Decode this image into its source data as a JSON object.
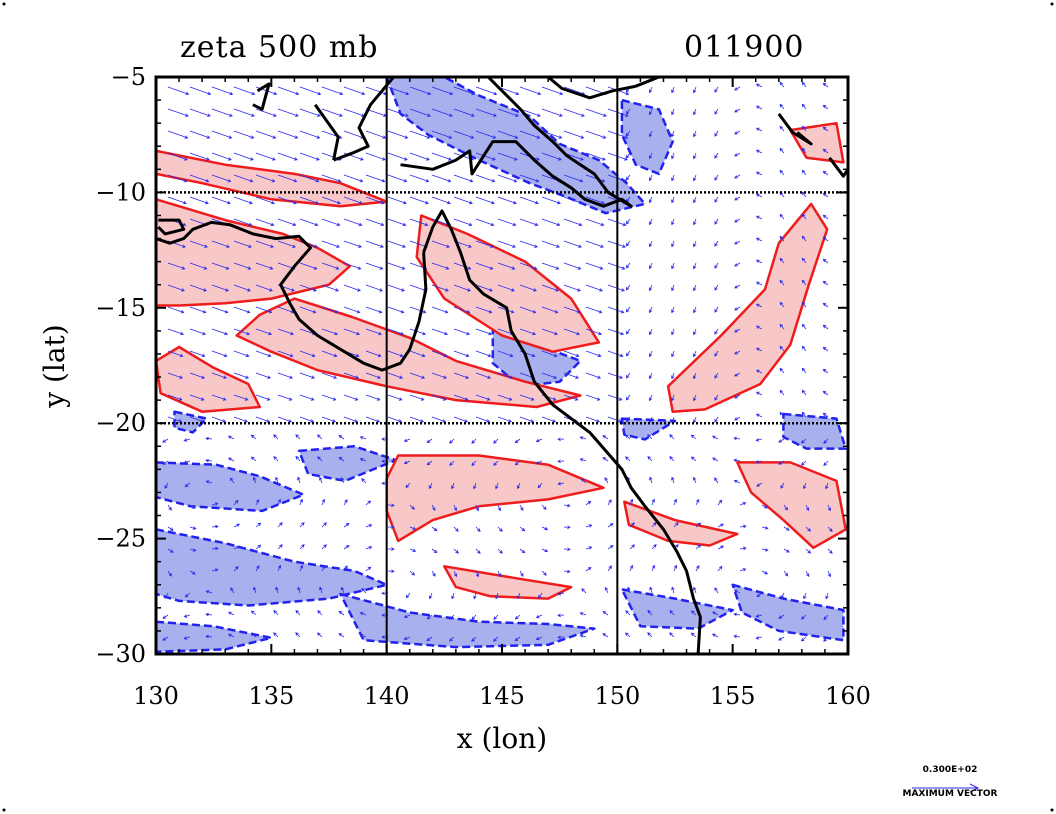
{
  "chart_data": {
    "type": "contour",
    "title": "zeta 500 mb",
    "date_label": "011900",
    "xlabel": "x (lon)",
    "ylabel": "y (lat)",
    "xlim": [
      130,
      160
    ],
    "ylim": [
      -30,
      -5
    ],
    "x_ticks": [
      130,
      135,
      140,
      145,
      150,
      155,
      160
    ],
    "y_ticks": [
      -5,
      -10,
      -15,
      -20,
      -25,
      -30
    ],
    "grid_lines_x": [
      140,
      150
    ],
    "grid_lines_y": [
      -10,
      -20
    ],
    "positive_color": "#ee1c1c",
    "positive_fill": "#f8c8c8",
    "negative_color": "#2222ee",
    "negative_fill": "#a8b0ee",
    "vector_color": "#2a2aee",
    "positive_regions": [
      [
        [
          130,
          -8.2
        ],
        [
          133,
          -8.8
        ],
        [
          136,
          -9.2
        ],
        [
          138,
          -9.6
        ],
        [
          140,
          -10.4
        ],
        [
          138,
          -10.6
        ],
        [
          135,
          -10.3
        ],
        [
          132,
          -9.6
        ],
        [
          130,
          -9.2
        ]
      ],
      [
        [
          130,
          -10.3
        ],
        [
          133,
          -11.2
        ],
        [
          135.5,
          -11.8
        ],
        [
          137,
          -12.4
        ],
        [
          138.4,
          -13.2
        ],
        [
          137.5,
          -14.0
        ],
        [
          135,
          -14.6
        ],
        [
          133,
          -14.8
        ],
        [
          131,
          -14.9
        ],
        [
          130,
          -14.9
        ]
      ],
      [
        [
          136,
          -14.6
        ],
        [
          138.5,
          -15.4
        ],
        [
          141,
          -16.3
        ],
        [
          143,
          -17.3
        ],
        [
          146,
          -18.2
        ],
        [
          148.4,
          -18.8
        ],
        [
          146.5,
          -19.3
        ],
        [
          143,
          -19.0
        ],
        [
          140,
          -18.4
        ],
        [
          137,
          -17.7
        ],
        [
          135,
          -16.9
        ],
        [
          133.5,
          -16.2
        ],
        [
          134.5,
          -15.3
        ]
      ],
      [
        [
          131,
          -16.7
        ],
        [
          132.5,
          -17.6
        ],
        [
          134,
          -18.3
        ],
        [
          134.5,
          -19.3
        ],
        [
          132,
          -19.5
        ],
        [
          130.2,
          -18.7
        ],
        [
          130,
          -17.3
        ]
      ],
      [
        [
          141.5,
          -11.0
        ],
        [
          143.5,
          -11.8
        ],
        [
          146,
          -13.0
        ],
        [
          148,
          -14.6
        ],
        [
          149.2,
          -16.5
        ],
        [
          147.2,
          -16.9
        ],
        [
          145,
          -16.2
        ],
        [
          142.5,
          -14.6
        ],
        [
          141.3,
          -12.8
        ]
      ],
      [
        [
          140.5,
          -21.4
        ],
        [
          144,
          -21.4
        ],
        [
          147,
          -21.8
        ],
        [
          149.4,
          -22.8
        ],
        [
          147,
          -23.3
        ],
        [
          144,
          -23.6
        ],
        [
          142,
          -24.2
        ],
        [
          140.5,
          -25.1
        ],
        [
          140,
          -23.8
        ],
        [
          140,
          -22.4
        ]
      ],
      [
        [
          142.5,
          -26.2
        ],
        [
          145.5,
          -26.7
        ],
        [
          148,
          -27.1
        ],
        [
          147,
          -27.6
        ],
        [
          144.5,
          -27.5
        ],
        [
          143,
          -27.1
        ]
      ],
      [
        [
          150.3,
          -23.4
        ],
        [
          152.5,
          -24.2
        ],
        [
          155.2,
          -24.8
        ],
        [
          154,
          -25.3
        ],
        [
          152.2,
          -25.1
        ],
        [
          150.5,
          -24.4
        ]
      ],
      [
        [
          155.2,
          -21.7
        ],
        [
          157.5,
          -21.7
        ],
        [
          159.5,
          -22.5
        ],
        [
          159.9,
          -24.6
        ],
        [
          158.5,
          -25.4
        ],
        [
          157.2,
          -24.2
        ],
        [
          155.8,
          -23.0
        ]
      ],
      [
        [
          152.2,
          -18.4
        ],
        [
          154.5,
          -16.2
        ],
        [
          156.4,
          -14.2
        ],
        [
          157.0,
          -12.2
        ],
        [
          158.4,
          -10.5
        ],
        [
          159.1,
          -11.6
        ],
        [
          158.3,
          -14.0
        ],
        [
          157.5,
          -16.6
        ],
        [
          156.2,
          -18.3
        ],
        [
          153.8,
          -19.4
        ],
        [
          152.4,
          -19.5
        ]
      ],
      [
        [
          157.5,
          -7.3
        ],
        [
          159.5,
          -7.0
        ],
        [
          159.8,
          -8.7
        ],
        [
          158.2,
          -8.5
        ]
      ]
    ],
    "negative_regions": [
      [
        [
          140,
          -5
        ],
        [
          142.5,
          -5
        ],
        [
          144,
          -5.8
        ],
        [
          146.2,
          -6.7
        ],
        [
          147.5,
          -7.9
        ],
        [
          149.2,
          -8.6
        ],
        [
          150.4,
          -9.6
        ],
        [
          151.2,
          -10.5
        ],
        [
          149.5,
          -10.9
        ],
        [
          147.8,
          -10.2
        ],
        [
          146.2,
          -9.6
        ],
        [
          144,
          -8.6
        ],
        [
          141.8,
          -7.5
        ],
        [
          140.6,
          -6.6
        ]
      ],
      [
        [
          150.2,
          -6.0
        ],
        [
          151.8,
          -6.4
        ],
        [
          152.4,
          -7.8
        ],
        [
          151.8,
          -9.2
        ],
        [
          150.8,
          -8.8
        ],
        [
          150.2,
          -7.5
        ]
      ],
      [
        [
          144.6,
          -15.8
        ],
        [
          146.5,
          -16.6
        ],
        [
          148.4,
          -17.3
        ],
        [
          147.5,
          -18.2
        ],
        [
          145.8,
          -18.4
        ],
        [
          144.6,
          -17.4
        ]
      ],
      [
        [
          130,
          -21.7
        ],
        [
          132.6,
          -21.8
        ],
        [
          134.5,
          -22.3
        ],
        [
          136.4,
          -23.1
        ],
        [
          134.6,
          -23.8
        ],
        [
          131.5,
          -23.6
        ],
        [
          130,
          -23.2
        ]
      ],
      [
        [
          136.2,
          -21.2
        ],
        [
          138.6,
          -21.0
        ],
        [
          140.4,
          -21.6
        ],
        [
          138.2,
          -22.5
        ],
        [
          136.6,
          -22.2
        ]
      ],
      [
        [
          130,
          -24.6
        ],
        [
          133,
          -25.2
        ],
        [
          136,
          -26.0
        ],
        [
          138.6,
          -26.4
        ],
        [
          140,
          -27.0
        ],
        [
          137.5,
          -27.6
        ],
        [
          134,
          -27.9
        ],
        [
          131,
          -27.7
        ],
        [
          130,
          -27.4
        ]
      ],
      [
        [
          138,
          -27.4
        ],
        [
          141,
          -28.2
        ],
        [
          144,
          -28.6
        ],
        [
          147,
          -28.7
        ],
        [
          149,
          -28.9
        ],
        [
          147,
          -29.6
        ],
        [
          143,
          -29.7
        ],
        [
          139,
          -29.4
        ]
      ],
      [
        [
          150.2,
          -27.2
        ],
        [
          152.5,
          -27.6
        ],
        [
          155,
          -28.1
        ],
        [
          153.5,
          -28.9
        ],
        [
          151,
          -28.8
        ]
      ],
      [
        [
          130,
          -28.6
        ],
        [
          132.5,
          -28.8
        ],
        [
          135,
          -29.3
        ],
        [
          133,
          -29.8
        ],
        [
          130,
          -29.9
        ]
      ],
      [
        [
          155,
          -27.0
        ],
        [
          157.2,
          -27.6
        ],
        [
          159.8,
          -28.1
        ],
        [
          159.8,
          -29.4
        ],
        [
          157,
          -29.0
        ],
        [
          155.4,
          -28.2
        ]
      ],
      [
        [
          157.2,
          -19.6
        ],
        [
          159.5,
          -19.8
        ],
        [
          159.9,
          -21.1
        ],
        [
          158.2,
          -21.1
        ],
        [
          157.2,
          -20.6
        ]
      ],
      [
        [
          150.2,
          -19.8
        ],
        [
          152.5,
          -19.9
        ],
        [
          151.2,
          -20.7
        ],
        [
          150.3,
          -20.5
        ]
      ],
      [
        [
          130.8,
          -19.5
        ],
        [
          132.2,
          -19.8
        ],
        [
          131.6,
          -20.4
        ],
        [
          130.8,
          -20.2
        ]
      ]
    ],
    "coastlines": [
      [
        [
          141.6,
          -12.6
        ],
        [
          142.0,
          -11.5
        ],
        [
          142.4,
          -10.8
        ],
        [
          142.8,
          -11.6
        ],
        [
          143.2,
          -12.6
        ],
        [
          143.6,
          -13.8
        ],
        [
          144.2,
          -14.4
        ],
        [
          145.2,
          -15.0
        ],
        [
          145.4,
          -16.0
        ],
        [
          146.0,
          -17.0
        ],
        [
          146.4,
          -18.2
        ],
        [
          147.2,
          -19.2
        ],
        [
          148.0,
          -19.8
        ],
        [
          148.8,
          -20.4
        ],
        [
          149.5,
          -21.2
        ],
        [
          150.2,
          -22.0
        ],
        [
          150.6,
          -22.8
        ],
        [
          151.2,
          -23.6
        ],
        [
          152.0,
          -24.6
        ],
        [
          152.6,
          -25.6
        ],
        [
          153.0,
          -26.4
        ],
        [
          153.3,
          -27.6
        ],
        [
          153.6,
          -28.4
        ],
        [
          153.5,
          -30.0
        ]
      ],
      [
        [
          141.6,
          -12.6
        ],
        [
          141.7,
          -14.2
        ],
        [
          141.4,
          -15.6
        ],
        [
          141.0,
          -16.8
        ],
        [
          140.6,
          -17.4
        ],
        [
          139.8,
          -17.7
        ],
        [
          139.0,
          -17.4
        ],
        [
          138.0,
          -16.8
        ],
        [
          137.0,
          -16.2
        ],
        [
          136.2,
          -15.5
        ],
        [
          135.8,
          -14.8
        ],
        [
          135.4,
          -14.0
        ],
        [
          136.0,
          -13.2
        ],
        [
          136.7,
          -12.4
        ],
        [
          136.2,
          -11.9
        ],
        [
          135.2,
          -12.0
        ],
        [
          134.2,
          -11.8
        ],
        [
          133.2,
          -11.4
        ],
        [
          132.4,
          -11.3
        ],
        [
          131.6,
          -11.6
        ],
        [
          131.2,
          -12.0
        ],
        [
          130.6,
          -12.2
        ],
        [
          130.0,
          -12.0
        ]
      ],
      [
        [
          130.1,
          -11.2
        ],
        [
          131.0,
          -11.2
        ],
        [
          131.2,
          -11.6
        ],
        [
          130.4,
          -11.8
        ],
        [
          130.1,
          -11.5
        ]
      ],
      [
        [
          137.7,
          -8.6
        ],
        [
          138.5,
          -8.3
        ],
        [
          139.2,
          -8.0
        ],
        [
          138.8,
          -7.2
        ],
        [
          139.3,
          -6.2
        ],
        [
          139.8,
          -5.6
        ],
        [
          140.3,
          -5.0
        ]
      ],
      [
        [
          137.7,
          -8.6
        ],
        [
          137.9,
          -7.6
        ],
        [
          137.4,
          -6.9
        ],
        [
          136.9,
          -6.2
        ]
      ],
      [
        [
          140.6,
          -8.8
        ],
        [
          142.0,
          -9.0
        ],
        [
          143.0,
          -8.6
        ],
        [
          143.6,
          -8.2
        ],
        [
          143.7,
          -9.2
        ],
        [
          144.6,
          -7.8
        ],
        [
          145.6,
          -7.8
        ],
        [
          146.4,
          -8.6
        ],
        [
          147.2,
          -9.3
        ],
        [
          148.0,
          -9.8
        ],
        [
          148.6,
          -10.3
        ],
        [
          149.4,
          -10.6
        ],
        [
          150.2,
          -10.3
        ],
        [
          150.6,
          -10.6
        ],
        [
          149.6,
          -10.0
        ],
        [
          149.0,
          -9.2
        ],
        [
          148.4,
          -8.8
        ],
        [
          147.8,
          -8.4
        ],
        [
          147.2,
          -7.8
        ],
        [
          146.4,
          -7.1
        ],
        [
          145.8,
          -6.4
        ],
        [
          145.0,
          -5.6
        ],
        [
          144.4,
          -5.0
        ]
      ],
      [
        [
          147.0,
          -5.0
        ],
        [
          147.6,
          -5.5
        ],
        [
          148.8,
          -5.9
        ],
        [
          149.8,
          -5.6
        ],
        [
          150.8,
          -5.4
        ],
        [
          151.8,
          -5.0
        ]
      ],
      [
        [
          134.4,
          -5.6
        ],
        [
          134.9,
          -5.3
        ],
        [
          134.6,
          -6.4
        ],
        [
          134.2,
          -6.2
        ]
      ],
      [
        [
          157.0,
          -6.6
        ],
        [
          157.6,
          -7.4
        ],
        [
          158.4,
          -7.9
        ],
        [
          157.8,
          -7.4
        ]
      ],
      [
        [
          159.2,
          -8.5
        ],
        [
          159.8,
          -9.3
        ],
        [
          160.0,
          -9.0
        ]
      ]
    ],
    "vector_legend": {
      "value": "0.300E+02",
      "label": "MAXIMUM VECTOR"
    }
  }
}
